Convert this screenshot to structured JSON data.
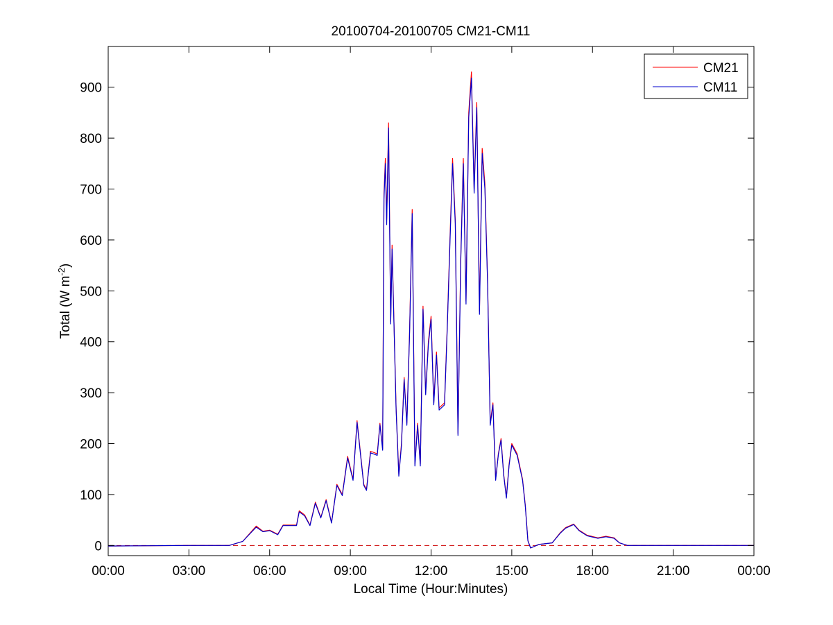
{
  "chart_data": {
    "type": "line",
    "title": "20100704-20100705 CM21-CM11",
    "xlabel": "Local Time (Hour:Minutes)",
    "ylabel_main": "Total (W m",
    "ylabel_sup": "-2",
    "ylabel_close": ")",
    "xlim": [
      0,
      24
    ],
    "ylim": [
      -20,
      980
    ],
    "grid": false,
    "legend_position": "top-right",
    "x_ticks": [
      {
        "value": 0,
        "label": "00:00"
      },
      {
        "value": 3,
        "label": "03:00"
      },
      {
        "value": 6,
        "label": "06:00"
      },
      {
        "value": 9,
        "label": "09:00"
      },
      {
        "value": 12,
        "label": "12:00"
      },
      {
        "value": 15,
        "label": "15:00"
      },
      {
        "value": 18,
        "label": "18:00"
      },
      {
        "value": 21,
        "label": "21:00"
      },
      {
        "value": 24,
        "label": "00:00"
      }
    ],
    "y_ticks": [
      {
        "value": 0,
        "label": "0"
      },
      {
        "value": 100,
        "label": "100"
      },
      {
        "value": 200,
        "label": "200"
      },
      {
        "value": 300,
        "label": "300"
      },
      {
        "value": 400,
        "label": "400"
      },
      {
        "value": 500,
        "label": "500"
      },
      {
        "value": 600,
        "label": "600"
      },
      {
        "value": 700,
        "label": "700"
      },
      {
        "value": 800,
        "label": "800"
      },
      {
        "value": 900,
        "label": "900"
      }
    ],
    "reference_line": {
      "y": 0,
      "color": "#cc0000",
      "style": "dashed"
    },
    "series": [
      {
        "name": "CM21",
        "color": "#ff0000",
        "points": [
          [
            0,
            -1
          ],
          [
            3,
            0
          ],
          [
            4.5,
            0
          ],
          [
            5,
            8
          ],
          [
            5.5,
            38
          ],
          [
            5.75,
            28
          ],
          [
            6,
            30
          ],
          [
            6.3,
            22
          ],
          [
            6.5,
            40
          ],
          [
            7,
            40
          ],
          [
            7.1,
            68
          ],
          [
            7.3,
            60
          ],
          [
            7.5,
            40
          ],
          [
            7.7,
            85
          ],
          [
            7.9,
            55
          ],
          [
            8.1,
            90
          ],
          [
            8.3,
            45
          ],
          [
            8.5,
            120
          ],
          [
            8.7,
            100
          ],
          [
            8.9,
            175
          ],
          [
            9.1,
            130
          ],
          [
            9.25,
            245
          ],
          [
            9.5,
            120
          ],
          [
            9.6,
            110
          ],
          [
            9.75,
            185
          ],
          [
            10,
            180
          ],
          [
            10.1,
            240
          ],
          [
            10.2,
            190
          ],
          [
            10.25,
            690
          ],
          [
            10.3,
            760
          ],
          [
            10.35,
            640
          ],
          [
            10.42,
            830
          ],
          [
            10.5,
            440
          ],
          [
            10.55,
            590
          ],
          [
            10.7,
            270
          ],
          [
            10.8,
            140
          ],
          [
            10.9,
            200
          ],
          [
            11,
            330
          ],
          [
            11.1,
            240
          ],
          [
            11.2,
            420
          ],
          [
            11.3,
            660
          ],
          [
            11.4,
            160
          ],
          [
            11.5,
            240
          ],
          [
            11.6,
            160
          ],
          [
            11.7,
            470
          ],
          [
            11.8,
            300
          ],
          [
            11.9,
            400
          ],
          [
            12,
            450
          ],
          [
            12.1,
            280
          ],
          [
            12.2,
            380
          ],
          [
            12.3,
            270
          ],
          [
            12.5,
            280
          ],
          [
            12.6,
            430
          ],
          [
            12.7,
            600
          ],
          [
            12.8,
            760
          ],
          [
            12.9,
            640
          ],
          [
            13,
            220
          ],
          [
            13.1,
            560
          ],
          [
            13.2,
            760
          ],
          [
            13.3,
            480
          ],
          [
            13.4,
            850
          ],
          [
            13.5,
            930
          ],
          [
            13.6,
            700
          ],
          [
            13.7,
            870
          ],
          [
            13.8,
            460
          ],
          [
            13.9,
            780
          ],
          [
            14,
            710
          ],
          [
            14.1,
            520
          ],
          [
            14.2,
            240
          ],
          [
            14.3,
            280
          ],
          [
            14.4,
            130
          ],
          [
            14.5,
            180
          ],
          [
            14.6,
            210
          ],
          [
            14.7,
            140
          ],
          [
            14.8,
            95
          ],
          [
            14.9,
            160
          ],
          [
            15,
            200
          ],
          [
            15.2,
            180
          ],
          [
            15.4,
            130
          ],
          [
            15.5,
            80
          ],
          [
            15.6,
            10
          ],
          [
            15.7,
            -5
          ],
          [
            16,
            2
          ],
          [
            16.5,
            5
          ],
          [
            16.8,
            25
          ],
          [
            17,
            35
          ],
          [
            17.3,
            42
          ],
          [
            17.5,
            30
          ],
          [
            17.8,
            20
          ],
          [
            18.2,
            15
          ],
          [
            18.5,
            18
          ],
          [
            18.8,
            15
          ],
          [
            19,
            5
          ],
          [
            19.3,
            0
          ],
          [
            21,
            0
          ],
          [
            24,
            0
          ]
        ]
      },
      {
        "name": "CM11",
        "color": "#0000cc",
        "points": [
          [
            0,
            -1
          ],
          [
            3,
            0
          ],
          [
            4.5,
            0
          ],
          [
            5,
            8
          ],
          [
            5.5,
            36
          ],
          [
            5.75,
            27
          ],
          [
            6,
            29
          ],
          [
            6.3,
            21
          ],
          [
            6.5,
            39
          ],
          [
            7,
            39
          ],
          [
            7.1,
            66
          ],
          [
            7.3,
            58
          ],
          [
            7.5,
            39
          ],
          [
            7.7,
            83
          ],
          [
            7.9,
            54
          ],
          [
            8.1,
            88
          ],
          [
            8.3,
            44
          ],
          [
            8.5,
            118
          ],
          [
            8.7,
            98
          ],
          [
            8.9,
            172
          ],
          [
            9.1,
            128
          ],
          [
            9.25,
            242
          ],
          [
            9.5,
            118
          ],
          [
            9.6,
            108
          ],
          [
            9.75,
            182
          ],
          [
            10,
            177
          ],
          [
            10.1,
            237
          ],
          [
            10.2,
            187
          ],
          [
            10.25,
            680
          ],
          [
            10.3,
            750
          ],
          [
            10.35,
            630
          ],
          [
            10.42,
            820
          ],
          [
            10.5,
            435
          ],
          [
            10.55,
            582
          ],
          [
            10.7,
            266
          ],
          [
            10.8,
            136
          ],
          [
            10.9,
            196
          ],
          [
            11,
            326
          ],
          [
            11.1,
            236
          ],
          [
            11.2,
            414
          ],
          [
            11.3,
            652
          ],
          [
            11.4,
            156
          ],
          [
            11.5,
            236
          ],
          [
            11.6,
            156
          ],
          [
            11.7,
            464
          ],
          [
            11.8,
            296
          ],
          [
            11.9,
            394
          ],
          [
            12,
            444
          ],
          [
            12.1,
            276
          ],
          [
            12.2,
            374
          ],
          [
            12.3,
            266
          ],
          [
            12.5,
            276
          ],
          [
            12.6,
            424
          ],
          [
            12.7,
            592
          ],
          [
            12.8,
            750
          ],
          [
            12.9,
            632
          ],
          [
            13,
            216
          ],
          [
            13.1,
            552
          ],
          [
            13.2,
            750
          ],
          [
            13.3,
            474
          ],
          [
            13.4,
            840
          ],
          [
            13.5,
            918
          ],
          [
            13.6,
            692
          ],
          [
            13.7,
            860
          ],
          [
            13.8,
            454
          ],
          [
            13.9,
            770
          ],
          [
            14,
            700
          ],
          [
            14.1,
            514
          ],
          [
            14.2,
            236
          ],
          [
            14.3,
            276
          ],
          [
            14.4,
            128
          ],
          [
            14.5,
            178
          ],
          [
            14.6,
            207
          ],
          [
            14.7,
            138
          ],
          [
            14.8,
            93
          ],
          [
            14.9,
            157
          ],
          [
            15,
            197
          ],
          [
            15.2,
            177
          ],
          [
            15.4,
            128
          ],
          [
            15.5,
            78
          ],
          [
            15.6,
            9
          ],
          [
            15.7,
            -5
          ],
          [
            16,
            2
          ],
          [
            16.5,
            5
          ],
          [
            16.8,
            24
          ],
          [
            17,
            34
          ],
          [
            17.3,
            41
          ],
          [
            17.5,
            29
          ],
          [
            17.8,
            19
          ],
          [
            18.2,
            14
          ],
          [
            18.5,
            17
          ],
          [
            18.8,
            14
          ],
          [
            19,
            5
          ],
          [
            19.3,
            0
          ],
          [
            21,
            0
          ],
          [
            24,
            0
          ]
        ]
      }
    ]
  }
}
